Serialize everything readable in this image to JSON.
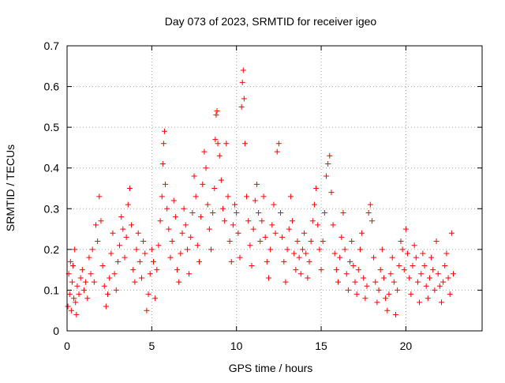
{
  "chart_data": {
    "type": "scatter",
    "title": "Day 073 of 2023, SRMTID for receiver igeo",
    "xlabel": "GPS time / hours",
    "ylabel": "SRMTID / TECUs",
    "xlim": [
      0,
      24.5
    ],
    "ylim": [
      0,
      0.7
    ],
    "xticks": [
      0,
      5,
      10,
      15,
      20
    ],
    "yticks": [
      0,
      0.1,
      0.2,
      0.3,
      0.4,
      0.5,
      0.6,
      0.7
    ],
    "xtick_labels": [
      "0",
      "5",
      "10",
      "15",
      "20"
    ],
    "ytick_labels": [
      "0",
      "0.1",
      "0.2",
      "0.3",
      "0.4",
      "0.5",
      "0.6",
      "0.7"
    ],
    "grid": true,
    "marker": "+",
    "color": "#ff0000",
    "series": [
      {
        "name": "SRMTID",
        "points": [
          [
            0.05,
            0.06
          ],
          [
            0.1,
            0.14
          ],
          [
            0.15,
            0.09
          ],
          [
            0.2,
            0.17
          ],
          [
            0.25,
            0.05
          ],
          [
            0.3,
            0.12
          ],
          [
            0.35,
            0.16
          ],
          [
            0.4,
            0.08
          ],
          [
            0.45,
            0.2
          ],
          [
            0.5,
            0.07
          ],
          [
            0.55,
            0.04
          ],
          [
            0.6,
            0.11
          ],
          [
            0.7,
            0.09
          ],
          [
            0.8,
            0.13
          ],
          [
            0.9,
            0.15
          ],
          [
            1.0,
            0.1
          ],
          [
            1.1,
            0.12
          ],
          [
            1.2,
            0.08
          ],
          [
            1.3,
            0.18
          ],
          [
            1.4,
            0.14
          ],
          [
            1.5,
            0.2
          ],
          [
            1.6,
            0.12
          ],
          [
            1.7,
            0.26
          ],
          [
            1.8,
            0.22
          ],
          [
            1.9,
            0.33
          ],
          [
            2.0,
            0.27
          ],
          [
            2.1,
            0.16
          ],
          [
            2.2,
            0.11
          ],
          [
            2.3,
            0.06
          ],
          [
            2.4,
            0.09
          ],
          [
            2.5,
            0.13
          ],
          [
            2.6,
            0.19
          ],
          [
            2.7,
            0.24
          ],
          [
            2.8,
            0.14
          ],
          [
            2.9,
            0.1
          ],
          [
            3.0,
            0.17
          ],
          [
            3.1,
            0.21
          ],
          [
            3.2,
            0.28
          ],
          [
            3.3,
            0.25
          ],
          [
            3.4,
            0.18
          ],
          [
            3.5,
            0.23
          ],
          [
            3.6,
            0.31
          ],
          [
            3.7,
            0.35
          ],
          [
            3.8,
            0.26
          ],
          [
            3.9,
            0.15
          ],
          [
            4.0,
            0.12
          ],
          [
            4.1,
            0.2
          ],
          [
            4.2,
            0.24
          ],
          [
            4.3,
            0.17
          ],
          [
            4.4,
            0.13
          ],
          [
            4.5,
            0.22
          ],
          [
            4.6,
            0.19
          ],
          [
            4.7,
            0.05
          ],
          [
            4.8,
            0.09
          ],
          [
            4.9,
            0.14
          ],
          [
            5.0,
            0.2
          ],
          [
            5.1,
            0.17
          ],
          [
            5.2,
            0.08
          ],
          [
            5.3,
            0.15
          ],
          [
            5.4,
            0.21
          ],
          [
            5.5,
            0.27
          ],
          [
            5.6,
            0.33
          ],
          [
            5.65,
            0.41
          ],
          [
            5.7,
            0.46
          ],
          [
            5.75,
            0.49
          ],
          [
            5.8,
            0.36
          ],
          [
            5.9,
            0.3
          ],
          [
            6.0,
            0.25
          ],
          [
            6.1,
            0.18
          ],
          [
            6.2,
            0.22
          ],
          [
            6.3,
            0.32
          ],
          [
            6.4,
            0.28
          ],
          [
            6.5,
            0.15
          ],
          [
            6.6,
            0.12
          ],
          [
            6.7,
            0.19
          ],
          [
            6.8,
            0.24
          ],
          [
            6.9,
            0.3
          ],
          [
            7.0,
            0.26
          ],
          [
            7.1,
            0.2
          ],
          [
            7.2,
            0.14
          ],
          [
            7.3,
            0.23
          ],
          [
            7.4,
            0.29
          ],
          [
            7.5,
            0.38
          ],
          [
            7.6,
            0.33
          ],
          [
            7.7,
            0.21
          ],
          [
            7.8,
            0.17
          ],
          [
            7.9,
            0.28
          ],
          [
            8.0,
            0.36
          ],
          [
            8.1,
            0.44
          ],
          [
            8.2,
            0.4
          ],
          [
            8.3,
            0.31
          ],
          [
            8.4,
            0.25
          ],
          [
            8.5,
            0.2
          ],
          [
            8.6,
            0.29
          ],
          [
            8.7,
            0.35
          ],
          [
            8.75,
            0.47
          ],
          [
            8.8,
            0.53
          ],
          [
            8.85,
            0.54
          ],
          [
            8.9,
            0.46
          ],
          [
            9.0,
            0.43
          ],
          [
            9.1,
            0.37
          ],
          [
            9.2,
            0.3
          ],
          [
            9.3,
            0.27
          ],
          [
            9.4,
            0.46
          ],
          [
            9.5,
            0.33
          ],
          [
            9.6,
            0.22
          ],
          [
            9.7,
            0.17
          ],
          [
            9.8,
            0.26
          ],
          [
            9.9,
            0.31
          ],
          [
            10.0,
            0.29
          ],
          [
            10.1,
            0.24
          ],
          [
            10.2,
            0.18
          ],
          [
            10.3,
            0.55
          ],
          [
            10.35,
            0.61
          ],
          [
            10.4,
            0.64
          ],
          [
            10.45,
            0.57
          ],
          [
            10.5,
            0.46
          ],
          [
            10.6,
            0.33
          ],
          [
            10.7,
            0.27
          ],
          [
            10.8,
            0.21
          ],
          [
            10.9,
            0.16
          ],
          [
            11.0,
            0.25
          ],
          [
            11.1,
            0.32
          ],
          [
            11.2,
            0.36
          ],
          [
            11.3,
            0.29
          ],
          [
            11.4,
            0.22
          ],
          [
            11.5,
            0.27
          ],
          [
            11.6,
            0.33
          ],
          [
            11.7,
            0.23
          ],
          [
            11.8,
            0.17
          ],
          [
            11.9,
            0.13
          ],
          [
            12.0,
            0.2
          ],
          [
            12.1,
            0.26
          ],
          [
            12.2,
            0.31
          ],
          [
            12.3,
            0.24
          ],
          [
            12.4,
            0.44
          ],
          [
            12.5,
            0.46
          ],
          [
            12.6,
            0.29
          ],
          [
            12.7,
            0.23
          ],
          [
            12.8,
            0.17
          ],
          [
            12.9,
            0.12
          ],
          [
            13.0,
            0.2
          ],
          [
            13.1,
            0.25
          ],
          [
            13.2,
            0.33
          ],
          [
            13.3,
            0.27
          ],
          [
            13.4,
            0.19
          ],
          [
            13.5,
            0.15
          ],
          [
            13.6,
            0.22
          ],
          [
            13.7,
            0.18
          ],
          [
            13.8,
            0.14
          ],
          [
            13.9,
            0.2
          ],
          [
            14.0,
            0.24
          ],
          [
            14.1,
            0.19
          ],
          [
            14.2,
            0.13
          ],
          [
            14.3,
            0.17
          ],
          [
            14.4,
            0.22
          ],
          [
            14.5,
            0.27
          ],
          [
            14.6,
            0.31
          ],
          [
            14.7,
            0.35
          ],
          [
            14.8,
            0.26
          ],
          [
            14.9,
            0.2
          ],
          [
            15.0,
            0.15
          ],
          [
            15.1,
            0.22
          ],
          [
            15.2,
            0.29
          ],
          [
            15.3,
            0.38
          ],
          [
            15.4,
            0.41
          ],
          [
            15.5,
            0.43
          ],
          [
            15.6,
            0.34
          ],
          [
            15.7,
            0.26
          ],
          [
            15.8,
            0.19
          ],
          [
            15.9,
            0.15
          ],
          [
            16.0,
            0.12
          ],
          [
            16.1,
            0.18
          ],
          [
            16.2,
            0.23
          ],
          [
            16.3,
            0.29
          ],
          [
            16.4,
            0.2
          ],
          [
            16.5,
            0.14
          ],
          [
            16.6,
            0.1
          ],
          [
            16.7,
            0.17
          ],
          [
            16.8,
            0.22
          ],
          [
            16.9,
            0.16
          ],
          [
            17.0,
            0.12
          ],
          [
            17.1,
            0.09
          ],
          [
            17.2,
            0.15
          ],
          [
            17.3,
            0.2
          ],
          [
            17.4,
            0.24
          ],
          [
            17.5,
            0.13
          ],
          [
            17.6,
            0.08
          ],
          [
            17.7,
            0.11
          ],
          [
            17.8,
            0.29
          ],
          [
            17.9,
            0.31
          ],
          [
            18.0,
            0.27
          ],
          [
            18.1,
            0.18
          ],
          [
            18.2,
            0.12
          ],
          [
            18.3,
            0.07
          ],
          [
            18.4,
            0.1
          ],
          [
            18.5,
            0.15
          ],
          [
            18.6,
            0.2
          ],
          [
            18.7,
            0.13
          ],
          [
            18.8,
            0.08
          ],
          [
            18.9,
            0.05
          ],
          [
            19.0,
            0.09
          ],
          [
            19.1,
            0.14
          ],
          [
            19.2,
            0.18
          ],
          [
            19.3,
            0.12
          ],
          [
            19.4,
            0.04
          ],
          [
            19.5,
            0.1
          ],
          [
            19.6,
            0.16
          ],
          [
            19.7,
            0.22
          ],
          [
            19.8,
            0.2
          ],
          [
            19.9,
            0.15
          ],
          [
            20.0,
            0.25
          ],
          [
            20.1,
            0.19
          ],
          [
            20.2,
            0.13
          ],
          [
            20.3,
            0.09
          ],
          [
            20.4,
            0.16
          ],
          [
            20.5,
            0.21
          ],
          [
            20.6,
            0.18
          ],
          [
            20.7,
            0.12
          ],
          [
            20.8,
            0.07
          ],
          [
            20.9,
            0.14
          ],
          [
            21.0,
            0.19
          ],
          [
            21.1,
            0.16
          ],
          [
            21.2,
            0.11
          ],
          [
            21.3,
            0.08
          ],
          [
            21.4,
            0.13
          ],
          [
            21.5,
            0.18
          ],
          [
            21.6,
            0.15
          ],
          [
            21.7,
            0.1
          ],
          [
            21.8,
            0.22
          ],
          [
            21.9,
            0.14
          ],
          [
            22.0,
            0.11
          ],
          [
            22.1,
            0.07
          ],
          [
            22.2,
            0.12
          ],
          [
            22.3,
            0.16
          ],
          [
            22.4,
            0.19
          ],
          [
            22.5,
            0.13
          ],
          [
            22.6,
            0.09
          ],
          [
            22.7,
            0.24
          ],
          [
            22.8,
            0.14
          ]
        ]
      }
    ]
  }
}
